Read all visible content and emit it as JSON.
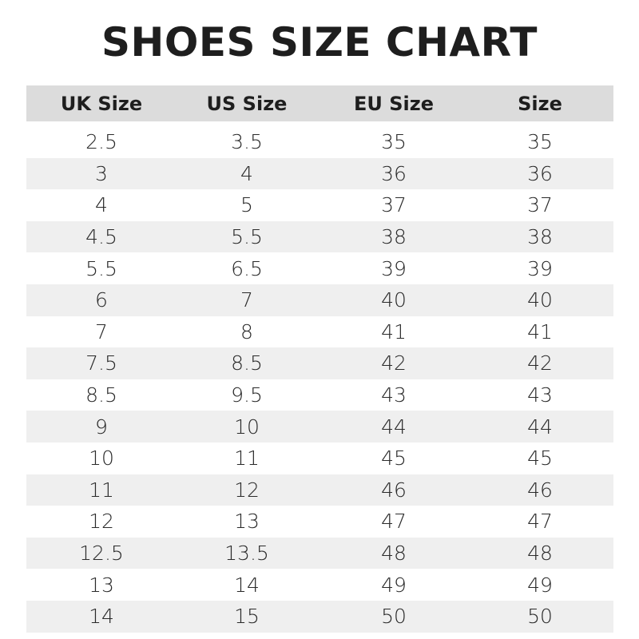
{
  "header": {
    "title": "SHOES SIZE CHART"
  },
  "table": {
    "columns": [
      "UK Size",
      "US Size",
      "EU Size",
      "Size"
    ],
    "rows": [
      [
        "2.5",
        "3.5",
        "35",
        "35"
      ],
      [
        "3",
        "4",
        "36",
        "36"
      ],
      [
        "4",
        "5",
        "37",
        "37"
      ],
      [
        "4.5",
        "5.5",
        "38",
        "38"
      ],
      [
        "5.5",
        "6.5",
        "39",
        "39"
      ],
      [
        "6",
        "7",
        "40",
        "40"
      ],
      [
        "7",
        "8",
        "41",
        "41"
      ],
      [
        "7.5",
        "8.5",
        "42",
        "42"
      ],
      [
        "8.5",
        "9.5",
        "43",
        "43"
      ],
      [
        "9",
        "10",
        "44",
        "44"
      ],
      [
        "10",
        "11",
        "45",
        "45"
      ],
      [
        "11",
        "12",
        "46",
        "46"
      ],
      [
        "12",
        "13",
        "47",
        "47"
      ],
      [
        "12.5",
        "13.5",
        "48",
        "48"
      ],
      [
        "13",
        "14",
        "49",
        "49"
      ],
      [
        "14",
        "15",
        "50",
        "50"
      ]
    ]
  }
}
